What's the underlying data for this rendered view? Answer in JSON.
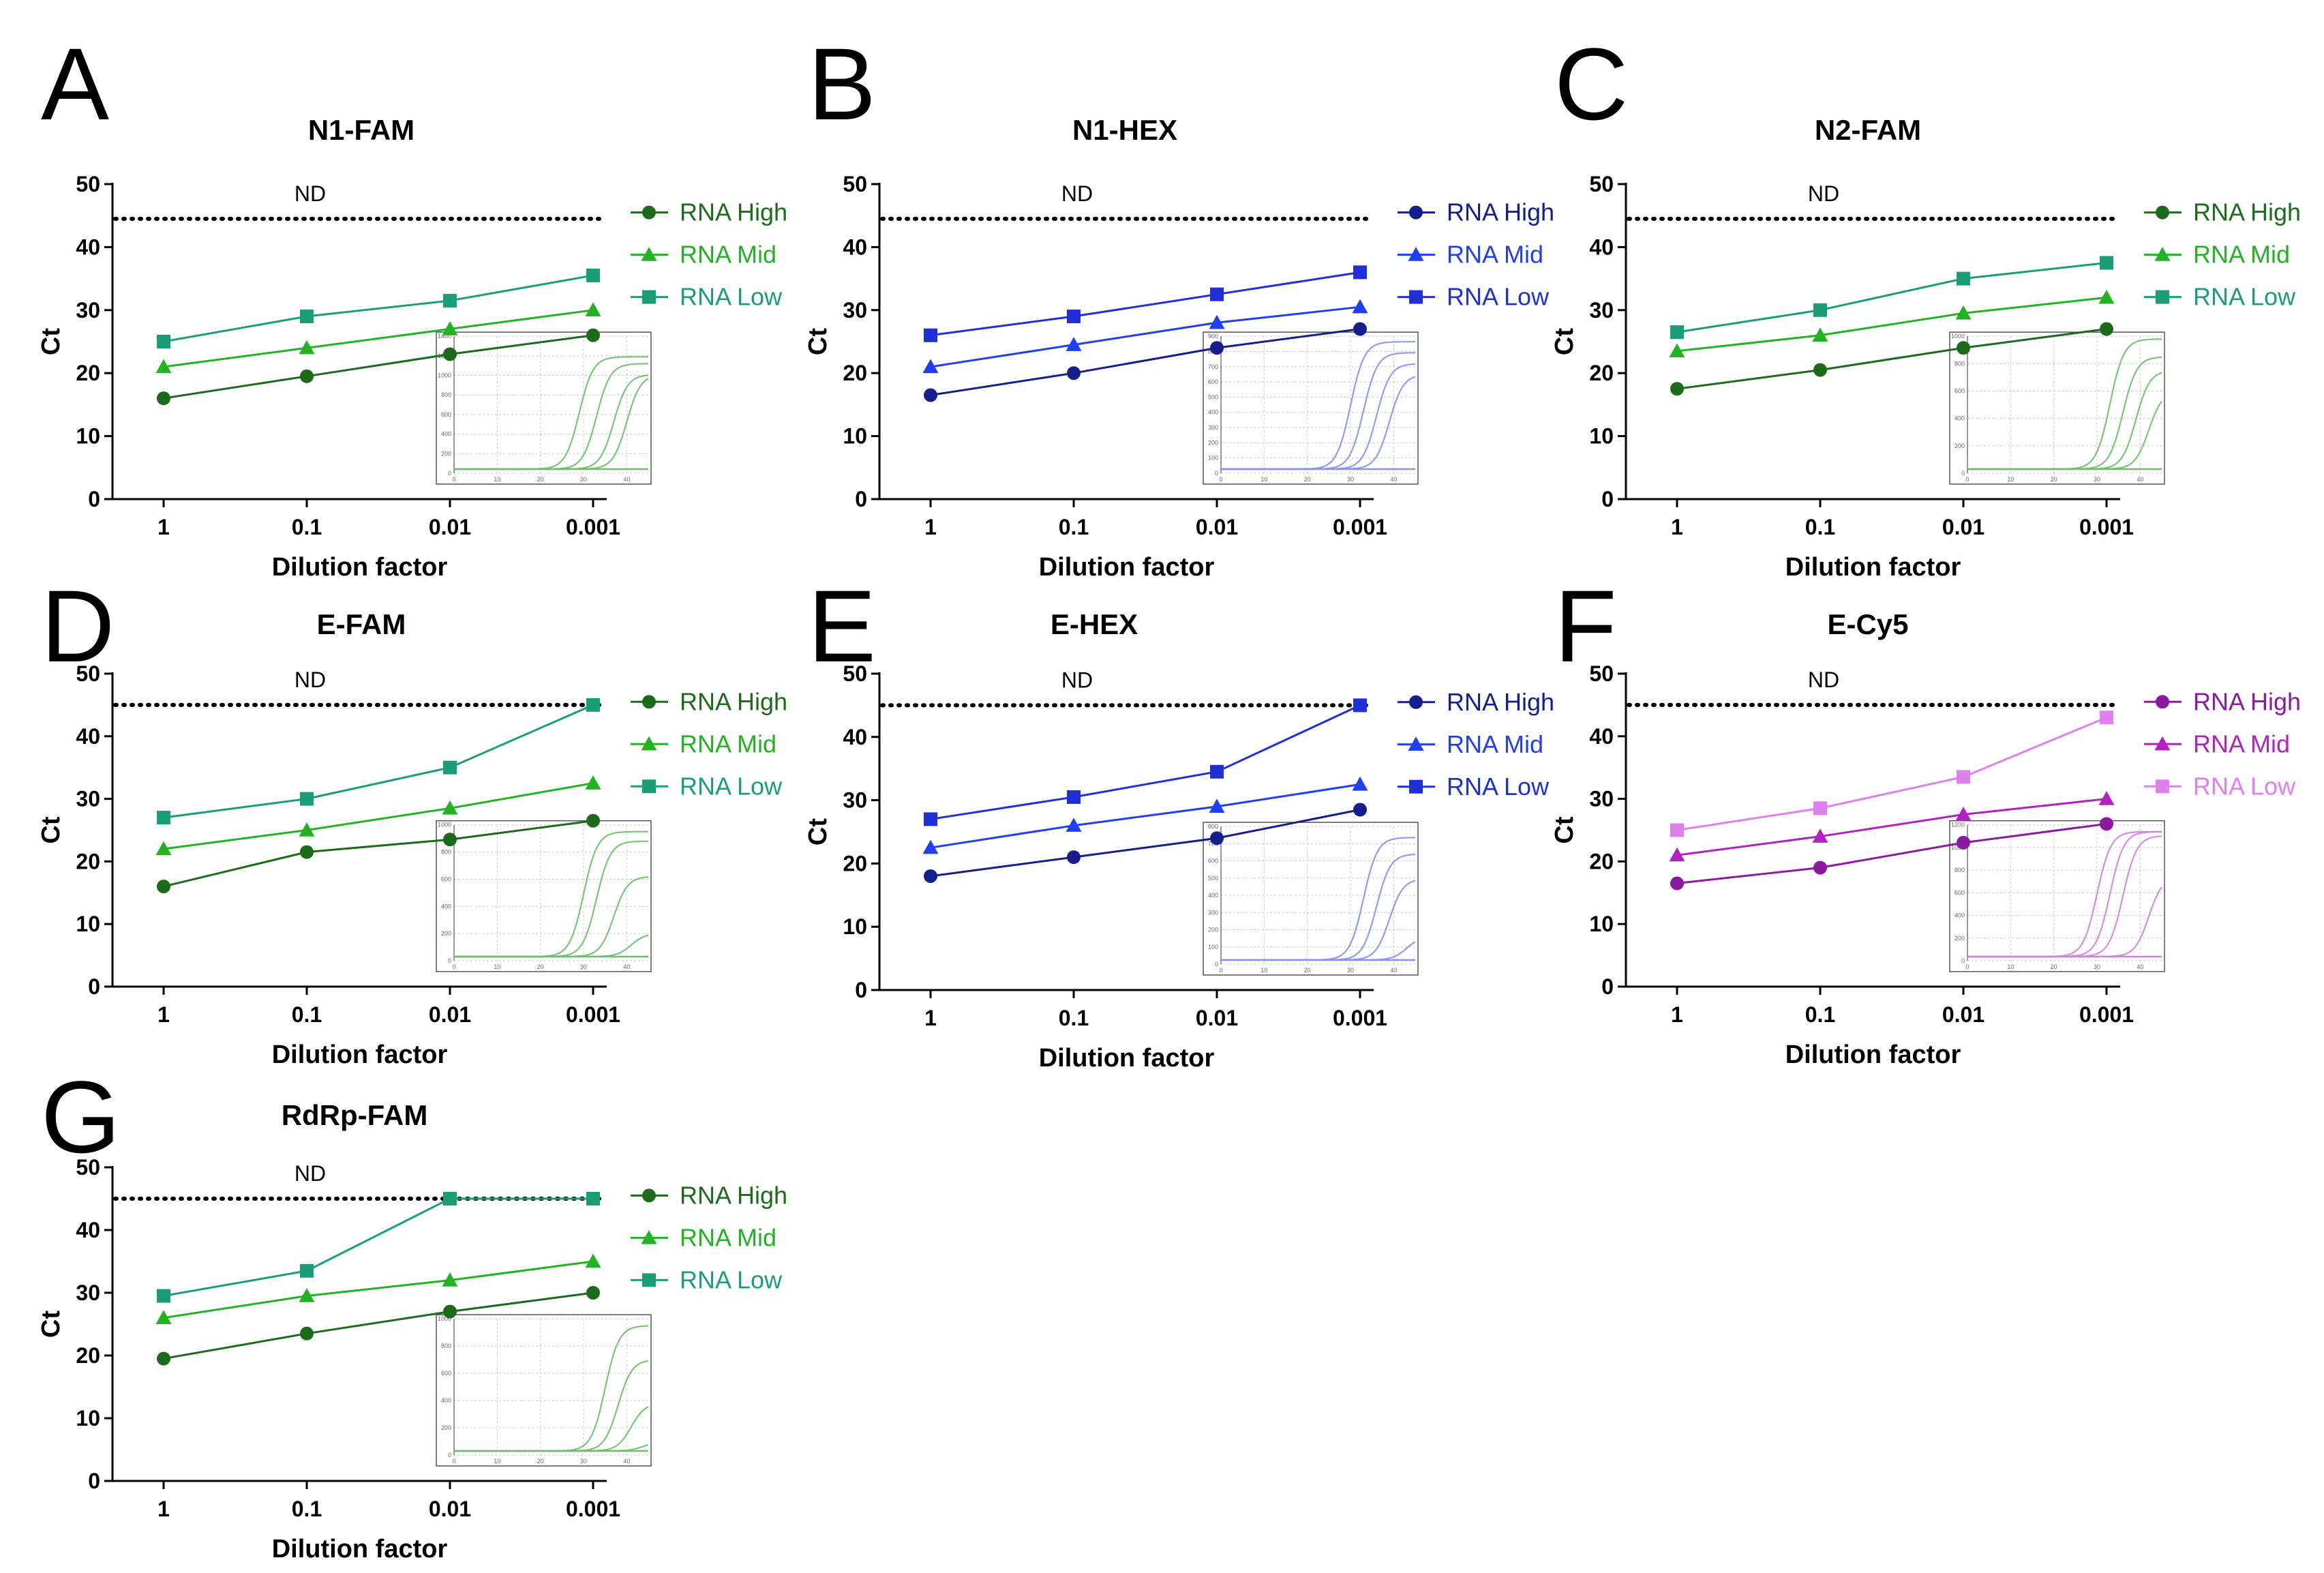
{
  "chart_data": [
    {
      "panel": "A",
      "title": "N1-FAM",
      "type": "line",
      "xlabel": "Dilution factor",
      "ylabel": "Ct",
      "categories": [
        "1",
        "0.1",
        "0.01",
        "0.001"
      ],
      "ylim": [
        0,
        50
      ],
      "yticks": [
        0,
        10,
        20,
        30,
        40,
        50
      ],
      "threshold": {
        "value": 44.5,
        "label": "ND"
      },
      "legend_position": "top-right",
      "series": [
        {
          "name": "RNA High",
          "marker": "circle",
          "color": "#1b6b1b",
          "values": [
            16,
            19.5,
            23,
            26
          ]
        },
        {
          "name": "RNA Mid",
          "marker": "triangle",
          "color": "#22b322",
          "values": [
            21,
            24,
            27,
            30
          ]
        },
        {
          "name": "RNA Low",
          "marker": "square",
          "color": "#1a9e78",
          "values": [
            25,
            29,
            31.5,
            35.5
          ]
        }
      ],
      "inset": {
        "type": "amplification-curves",
        "color": "#6bbf6b",
        "y_ticks": [
          "0",
          "200",
          "400",
          "600",
          "800",
          "1000",
          "1200",
          "1400"
        ],
        "x_ticks": [
          "0",
          "10",
          "20",
          "30",
          "40"
        ],
        "curves": [
          {
            "ct": 26,
            "plateau": 0.85
          },
          {
            "ct": 30,
            "plateau": 0.8
          },
          {
            "ct": 34,
            "plateau": 0.72
          },
          {
            "ct": 37,
            "plateau": 0.72
          }
        ]
      }
    },
    {
      "panel": "B",
      "title": "N1-HEX",
      "type": "line",
      "xlabel": "Dilution factor",
      "ylabel": "Ct",
      "categories": [
        "1",
        "0.1",
        "0.01",
        "0.001"
      ],
      "ylim": [
        0,
        50
      ],
      "yticks": [
        0,
        10,
        20,
        30,
        40,
        50
      ],
      "threshold": {
        "value": 44.5,
        "label": "ND"
      },
      "legend_position": "top-right",
      "series": [
        {
          "name": "RNA High",
          "marker": "circle",
          "color": "#141e8c",
          "values": [
            16.5,
            20,
            24,
            27
          ]
        },
        {
          "name": "RNA Mid",
          "marker": "triangle",
          "color": "#1f3ff0",
          "values": [
            21,
            24.5,
            28,
            30.5
          ]
        },
        {
          "name": "RNA Low",
          "marker": "square",
          "color": "#2030d8",
          "values": [
            26,
            29,
            32.5,
            36
          ]
        }
      ],
      "inset": {
        "type": "amplification-curves",
        "color": "#8a8ff0",
        "y_ticks": [
          "0",
          "100",
          "200",
          "300",
          "400",
          "500",
          "600",
          "700",
          "800",
          "900"
        ],
        "x_ticks": [
          "0",
          "10",
          "20",
          "30",
          "40"
        ],
        "curves": [
          {
            "ct": 27,
            "plateau": 0.96
          },
          {
            "ct": 30,
            "plateau": 0.88
          },
          {
            "ct": 33,
            "plateau": 0.8
          },
          {
            "ct": 36,
            "plateau": 0.72
          }
        ]
      }
    },
    {
      "panel": "C",
      "title": "N2-FAM",
      "type": "line",
      "xlabel": "Dilution factor",
      "ylabel": "Ct",
      "categories": [
        "1",
        "0.1",
        "0.01",
        "0.001"
      ],
      "ylim": [
        0,
        50
      ],
      "yticks": [
        0,
        10,
        20,
        30,
        40,
        50
      ],
      "threshold": {
        "value": 44.5,
        "label": "ND"
      },
      "legend_position": "top-right",
      "series": [
        {
          "name": "RNA High",
          "marker": "circle",
          "color": "#1b6b1b",
          "values": [
            17.5,
            20.5,
            24,
            27
          ]
        },
        {
          "name": "RNA Mid",
          "marker": "triangle",
          "color": "#22b322",
          "values": [
            23.5,
            26,
            29.5,
            32
          ]
        },
        {
          "name": "RNA Low",
          "marker": "square",
          "color": "#1a9e78",
          "values": [
            26.5,
            30,
            35,
            37.5
          ]
        }
      ],
      "inset": {
        "type": "amplification-curves",
        "color": "#6bbf6b",
        "y_ticks": [
          "0",
          "200",
          "400",
          "600",
          "800",
          "1000"
        ],
        "x_ticks": [
          "0",
          "10",
          "20",
          "30",
          "40"
        ],
        "curves": [
          {
            "ct": 30,
            "plateau": 0.98
          },
          {
            "ct": 33,
            "plateau": 0.85
          },
          {
            "ct": 36,
            "plateau": 0.75
          },
          {
            "ct": 39,
            "plateau": 0.6
          }
        ]
      }
    },
    {
      "panel": "D",
      "title": "E-FAM",
      "type": "line",
      "xlabel": "Dilution factor",
      "ylabel": "Ct",
      "categories": [
        "1",
        "0.1",
        "0.01",
        "0.001"
      ],
      "ylim": [
        0,
        50
      ],
      "yticks": [
        0,
        10,
        20,
        30,
        40,
        50
      ],
      "threshold": {
        "value": 45,
        "label": "ND"
      },
      "legend_position": "top-right",
      "series": [
        {
          "name": "RNA High",
          "marker": "circle",
          "color": "#1b6b1b",
          "values": [
            16,
            21.5,
            23.5,
            26.5
          ]
        },
        {
          "name": "RNA Mid",
          "marker": "triangle",
          "color": "#22b322",
          "values": [
            22,
            25,
            28.5,
            32.5
          ]
        },
        {
          "name": "RNA Low",
          "marker": "square",
          "color": "#1a9e78",
          "values": [
            27,
            30,
            35,
            45
          ]
        }
      ],
      "inset": {
        "type": "amplification-curves",
        "color": "#6bbf6b",
        "y_ticks": [
          "0",
          "200",
          "400",
          "600",
          "800",
          "1000"
        ],
        "x_ticks": [
          "0",
          "10",
          "20",
          "30",
          "40"
        ],
        "curves": [
          {
            "ct": 27,
            "plateau": 0.95
          },
          {
            "ct": 30,
            "plateau": 0.88
          },
          {
            "ct": 34,
            "plateau": 0.62
          },
          {
            "ct": 38,
            "plateau": 0.2
          }
        ]
      }
    },
    {
      "panel": "E",
      "title": "E-HEX",
      "type": "line",
      "xlabel": "Dilution factor",
      "ylabel": "Ct",
      "categories": [
        "1",
        "0.1",
        "0.01",
        "0.001"
      ],
      "ylim": [
        0,
        50
      ],
      "yticks": [
        0,
        10,
        20,
        30,
        40,
        50
      ],
      "threshold": {
        "value": 45,
        "label": "ND"
      },
      "legend_position": "top-right",
      "series": [
        {
          "name": "RNA High",
          "marker": "circle",
          "color": "#141e8c",
          "values": [
            18,
            21,
            24,
            28.5
          ]
        },
        {
          "name": "RNA Mid",
          "marker": "triangle",
          "color": "#1f3ff0",
          "values": [
            22.5,
            26,
            29,
            32.5
          ]
        },
        {
          "name": "RNA Low",
          "marker": "square",
          "color": "#2030d8",
          "values": [
            27,
            30.5,
            34.5,
            45
          ]
        }
      ],
      "inset": {
        "type": "amplification-curves",
        "color": "#8a8ff0",
        "y_ticks": [
          "0",
          "100",
          "200",
          "300",
          "400",
          "500",
          "600",
          "700",
          "800"
        ],
        "x_ticks": [
          "0",
          "10",
          "20",
          "30",
          "40"
        ],
        "curves": [
          {
            "ct": 30,
            "plateau": 0.92
          },
          {
            "ct": 33,
            "plateau": 0.8
          },
          {
            "ct": 36,
            "plateau": 0.62
          },
          {
            "ct": 40,
            "plateau": 0.2
          }
        ]
      }
    },
    {
      "panel": "F",
      "title": "E-Cy5",
      "type": "line",
      "xlabel": "Dilution factor",
      "ylabel": "Ct",
      "categories": [
        "1",
        "0.1",
        "0.01",
        "0.001"
      ],
      "ylim": [
        0,
        50
      ],
      "yticks": [
        0,
        10,
        20,
        30,
        40,
        50
      ],
      "threshold": {
        "value": 45,
        "label": "ND"
      },
      "legend_position": "top-right",
      "series": [
        {
          "name": "RNA High",
          "marker": "circle",
          "color": "#8a1aa0",
          "values": [
            16.5,
            19,
            23,
            26
          ]
        },
        {
          "name": "RNA Mid",
          "marker": "triangle",
          "color": "#b023c0",
          "values": [
            21,
            24,
            27.5,
            30
          ]
        },
        {
          "name": "RNA Low",
          "marker": "square",
          "color": "#e080ee",
          "values": [
            25,
            28.5,
            33.5,
            43
          ]
        }
      ],
      "inset": {
        "type": "amplification-curves",
        "color": "#d080e0",
        "y_ticks": [
          "0",
          "200",
          "400",
          "600",
          "800",
          "1000",
          "1200"
        ],
        "x_ticks": [
          "0",
          "10",
          "20",
          "30",
          "40"
        ],
        "curves": [
          {
            "ct": 27,
            "plateau": 0.95
          },
          {
            "ct": 30,
            "plateau": 0.95
          },
          {
            "ct": 33,
            "plateau": 0.92
          },
          {
            "ct": 39,
            "plateau": 0.62
          }
        ]
      }
    },
    {
      "panel": "G",
      "title": "RdRp-FAM",
      "type": "line",
      "xlabel": "Dilution factor",
      "ylabel": "Ct",
      "categories": [
        "1",
        "0.1",
        "0.01",
        "0.001"
      ],
      "ylim": [
        0,
        50
      ],
      "yticks": [
        0,
        10,
        20,
        30,
        40,
        50
      ],
      "threshold": {
        "value": 45,
        "label": "ND"
      },
      "legend_position": "top-right",
      "series": [
        {
          "name": "RNA High",
          "marker": "circle",
          "color": "#1b6b1b",
          "values": [
            19.5,
            23.5,
            27,
            30
          ]
        },
        {
          "name": "RNA Mid",
          "marker": "triangle",
          "color": "#22b322",
          "values": [
            26,
            29.5,
            32,
            35
          ]
        },
        {
          "name": "RNA Low",
          "marker": "square",
          "color": "#1a9e78",
          "values": [
            29.5,
            33.5,
            45,
            45
          ]
        }
      ],
      "inset": {
        "type": "amplification-curves",
        "color": "#6bbf6b",
        "y_ticks": [
          "0",
          "200",
          "400",
          "600",
          "800",
          "1000"
        ],
        "x_ticks": [
          "0",
          "10",
          "20",
          "30",
          "40"
        ],
        "curves": [
          {
            "ct": 32,
            "plateau": 0.95
          },
          {
            "ct": 35,
            "plateau": 0.7
          },
          {
            "ct": 38,
            "plateau": 0.38
          },
          {
            "ct": 41,
            "plateau": 0.1
          }
        ]
      }
    }
  ]
}
